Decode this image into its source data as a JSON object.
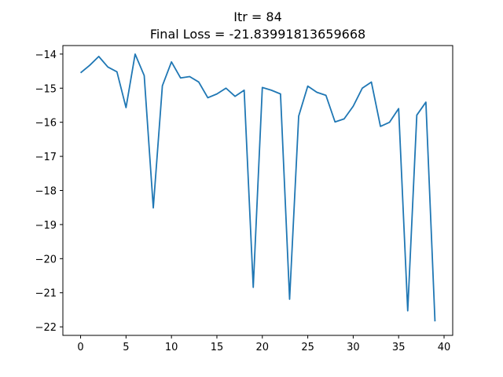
{
  "chart_data": {
    "type": "line",
    "title": "Itr = 84",
    "subtitle": "Final Loss = -21.83991813659668",
    "xlabel": "",
    "ylabel": "",
    "xlim": [
      -1.95,
      40.95
    ],
    "ylim": [
      -22.25,
      -13.75
    ],
    "grid": false,
    "xticks": [
      0,
      5,
      10,
      15,
      20,
      25,
      30,
      35,
      40
    ],
    "yticks": [
      -22,
      -21,
      -20,
      -19,
      -18,
      -17,
      -16,
      -15,
      -14
    ],
    "series": [
      {
        "color": "#1f77b4",
        "x": [
          0,
          1,
          2,
          3,
          4,
          5,
          6,
          7,
          8,
          9,
          10,
          11,
          12,
          13,
          14,
          15,
          16,
          17,
          18,
          19,
          20,
          21,
          22,
          23,
          24,
          25,
          26,
          27,
          28,
          29,
          30,
          31,
          32,
          33,
          34,
          35,
          36,
          37,
          38,
          39
        ],
        "values": [
          -14.55,
          -14.33,
          -14.07,
          -14.38,
          -14.52,
          -15.57,
          -14.0,
          -14.63,
          -18.51,
          -14.93,
          -14.23,
          -14.7,
          -14.66,
          -14.82,
          -15.28,
          -15.17,
          -15.0,
          -15.24,
          -15.06,
          -20.84,
          -14.98,
          -15.06,
          -15.17,
          -21.19,
          -15.82,
          -14.94,
          -15.12,
          -15.21,
          -15.99,
          -15.9,
          -15.53,
          -15.0,
          -14.82,
          -16.12,
          -16.0,
          -15.6,
          -21.53,
          -15.79,
          -15.41,
          -21.84
        ]
      }
    ]
  }
}
